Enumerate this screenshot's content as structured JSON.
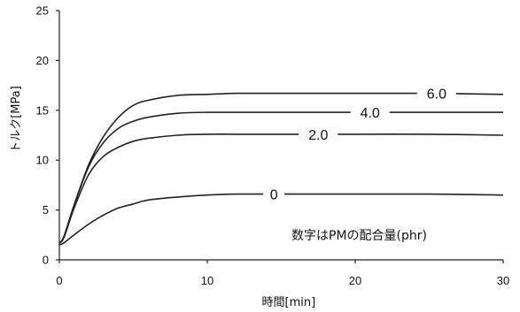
{
  "chart_data": {
    "type": "line",
    "title": "",
    "xlabel": "時間[min]",
    "ylabel": "トルク[MPa]",
    "xlim": [
      0,
      30
    ],
    "ylim": [
      0,
      25
    ],
    "xticks": [
      0,
      10,
      20,
      30
    ],
    "yticks": [
      0,
      5,
      10,
      15,
      20,
      25
    ],
    "grid": false,
    "annotation": "数字はPMの配合量(phr)",
    "x": [
      0,
      0.3,
      1,
      2,
      3,
      4,
      5,
      6,
      8,
      10,
      12,
      15,
      20,
      25,
      30
    ],
    "series": [
      {
        "name": "6.0",
        "values": [
          1.7,
          2.3,
          5.5,
          9.6,
          12.4,
          14.3,
          15.5,
          16.0,
          16.5,
          16.6,
          16.7,
          16.7,
          16.7,
          16.7,
          16.6
        ]
      },
      {
        "name": "4.0",
        "values": [
          1.7,
          2.3,
          5.5,
          9.4,
          11.8,
          13.2,
          13.9,
          14.3,
          14.7,
          14.8,
          14.8,
          14.8,
          14.8,
          14.8,
          14.8
        ]
      },
      {
        "name": "2.0",
        "values": [
          1.7,
          2.2,
          5.2,
          8.6,
          10.4,
          11.3,
          11.9,
          12.2,
          12.5,
          12.6,
          12.6,
          12.6,
          12.6,
          12.6,
          12.5
        ]
      },
      {
        "name": "0",
        "values": [
          1.5,
          1.7,
          2.5,
          3.6,
          4.5,
          5.2,
          5.6,
          6.0,
          6.3,
          6.5,
          6.6,
          6.6,
          6.6,
          6.6,
          6.5
        ]
      }
    ]
  }
}
